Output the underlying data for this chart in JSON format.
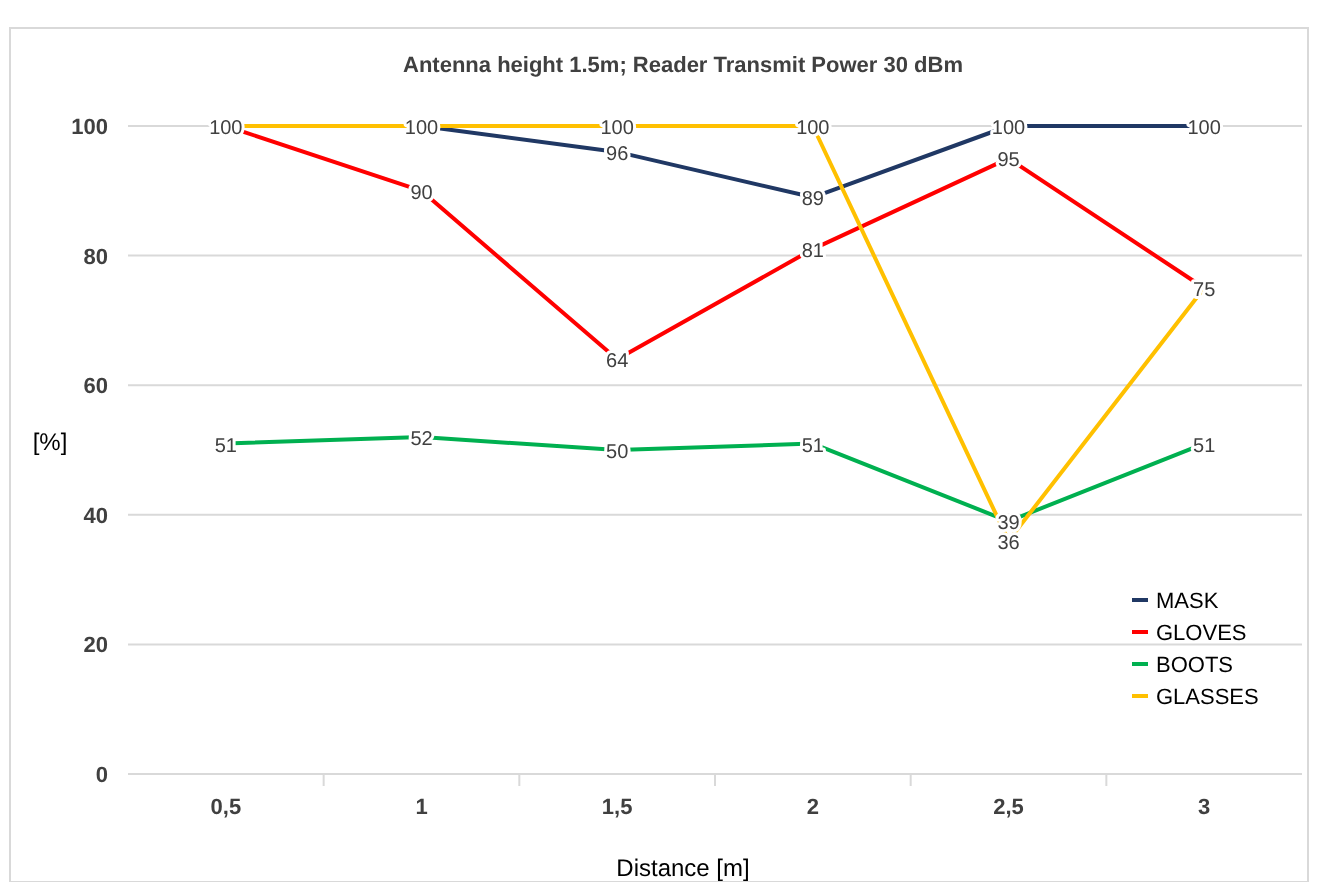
{
  "chart_data": {
    "type": "line",
    "title": "Antenna height 1.5m; Reader Transmit Power 30 dBm",
    "xlabel": "Distance [m]",
    "ylabel": "[%]",
    "categories": [
      "0,5",
      "1",
      "1,5",
      "2",
      "2,5",
      "3"
    ],
    "series": [
      {
        "name": "MASK",
        "color": "#203864",
        "values": [
          100,
          100,
          96,
          89,
          100,
          100
        ],
        "value_labels": [
          "100",
          "100",
          "96",
          "89",
          "100",
          "100"
        ]
      },
      {
        "name": "GLOVES",
        "color": "#ff0000",
        "values": [
          100,
          90,
          64,
          81,
          95,
          75
        ],
        "value_labels": [
          null,
          "90",
          "64",
          "81",
          "95",
          "75"
        ]
      },
      {
        "name": "BOOTS",
        "color": "#00b050",
        "values": [
          51,
          52,
          50,
          51,
          39,
          51
        ],
        "value_labels": [
          "51",
          "52",
          "50",
          "51",
          "39",
          "51"
        ]
      },
      {
        "name": "GLASSES",
        "color": "#ffc000",
        "values": [
          100,
          100,
          100,
          100,
          36,
          75
        ],
        "value_labels": [
          null,
          null,
          "100",
          "100",
          "36",
          null
        ]
      }
    ],
    "ylim": [
      0,
      100
    ],
    "yticks": [
      0,
      20,
      40,
      60,
      80,
      100
    ],
    "grid": "y",
    "legend": "right",
    "marker": "none",
    "line_style": "solid"
  }
}
